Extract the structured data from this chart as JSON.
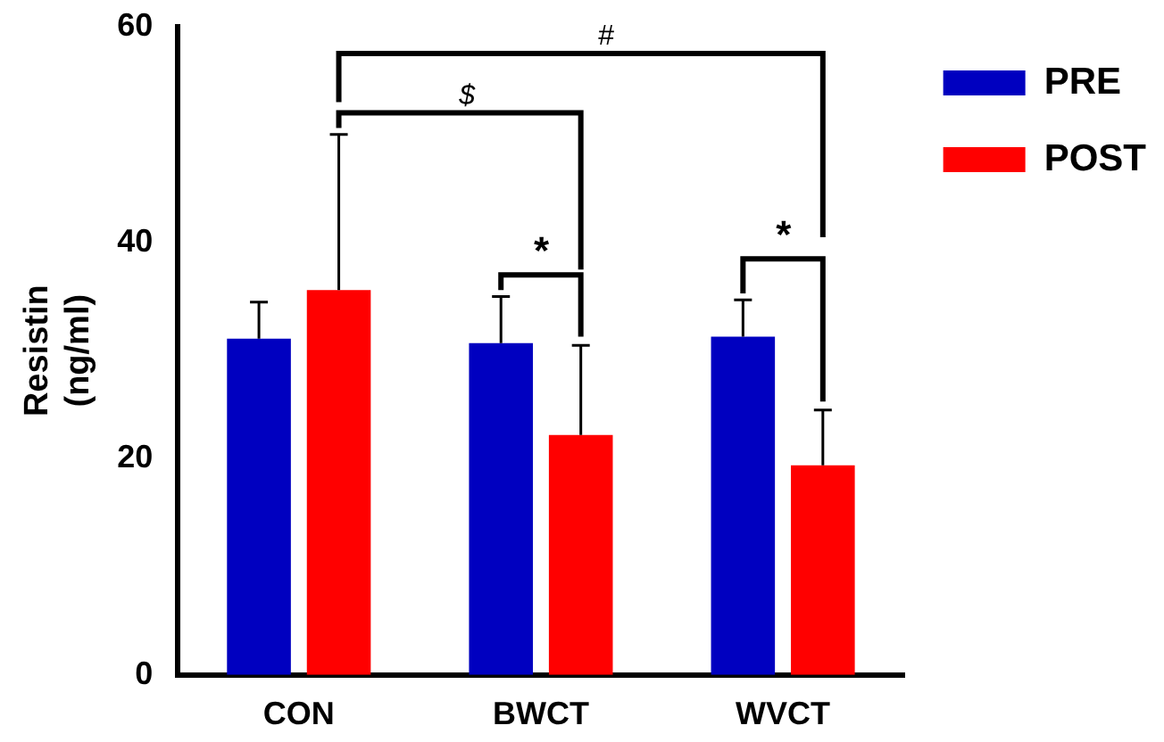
{
  "chart_data": {
    "type": "bar",
    "ylabel": "Resistin (ng/ml)",
    "categories": [
      "CON",
      "BWCT",
      "WVCT"
    ],
    "series": [
      {
        "name": "PRE",
        "color": "#0000c0",
        "values": [
          31.1,
          30.7,
          31.3
        ],
        "errors": [
          [
            31.1,
            34.5
          ],
          [
            30.7,
            35.0
          ],
          [
            31.3,
            34.7
          ]
        ]
      },
      {
        "name": "POST",
        "color": "#ff0000",
        "values": [
          35.6,
          22.2,
          19.4
        ],
        "errors": [
          [
            35.6,
            50.0
          ],
          [
            22.2,
            30.5
          ],
          [
            19.4,
            24.5
          ]
        ]
      }
    ],
    "ylim": [
      0,
      60
    ],
    "yticks": [
      0,
      20,
      40,
      60
    ],
    "grid": false,
    "legend": "right",
    "annotations": [
      "#",
      "$",
      "*",
      "*"
    ]
  }
}
